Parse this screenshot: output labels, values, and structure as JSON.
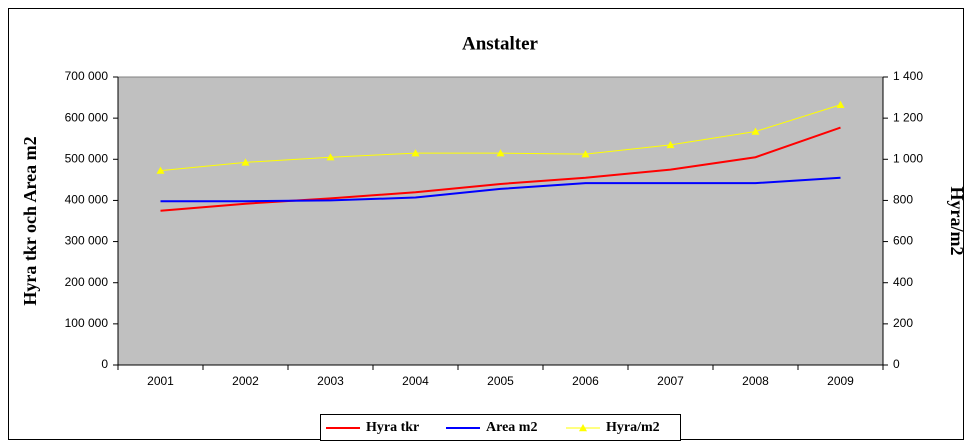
{
  "chart_data": {
    "type": "line",
    "title": "Anstalter",
    "y_label": "Hyra tkr och Area m2",
    "y2_label": "Hyra/m2",
    "categories": [
      "2001",
      "2002",
      "2003",
      "2004",
      "2005",
      "2006",
      "2007",
      "2008",
      "2009"
    ],
    "series": [
      {
        "name": "Hyra tkr",
        "color": "#ff0000",
        "values": [
          375000,
          392000,
          405000,
          420000,
          440000,
          455000,
          475000,
          505000,
          577000
        ]
      },
      {
        "name": "Area m2",
        "color": "#0000ff",
        "values": [
          398000,
          398000,
          400000,
          407000,
          428000,
          442000,
          442000,
          442000,
          455000
        ]
      },
      {
        "name": "Hyra/m2",
        "color": "#ffff00",
        "axis": "y2",
        "marker": "triangle",
        "values": [
          945,
          985,
          1010,
          1030,
          1030,
          1025,
          1070,
          1135,
          1265
        ]
      }
    ],
    "ylim": [
      0,
      700000
    ],
    "yticks": [
      0,
      {
        "value": 100000,
        "label": "100 000"
      },
      {
        "value": 200000,
        "label": "200 000"
      },
      {
        "value": 300000,
        "label": "300 000"
      },
      {
        "value": 400000,
        "label": "400 000"
      },
      {
        "value": 500000,
        "label": "500 000"
      },
      {
        "value": 600000,
        "label": "600 000"
      },
      {
        "value": 700000,
        "label": "700 000"
      }
    ],
    "y2lim": [
      0,
      1400
    ],
    "y2ticks": [
      0,
      200,
      400,
      600,
      800,
      {
        "value": 1000,
        "label": "1 000"
      },
      {
        "value": 1200,
        "label": "1 200"
      },
      {
        "value": 1400,
        "label": "1 400"
      }
    ],
    "grid": false,
    "plot_background": "#c0c0c0",
    "legend": "bottom"
  }
}
